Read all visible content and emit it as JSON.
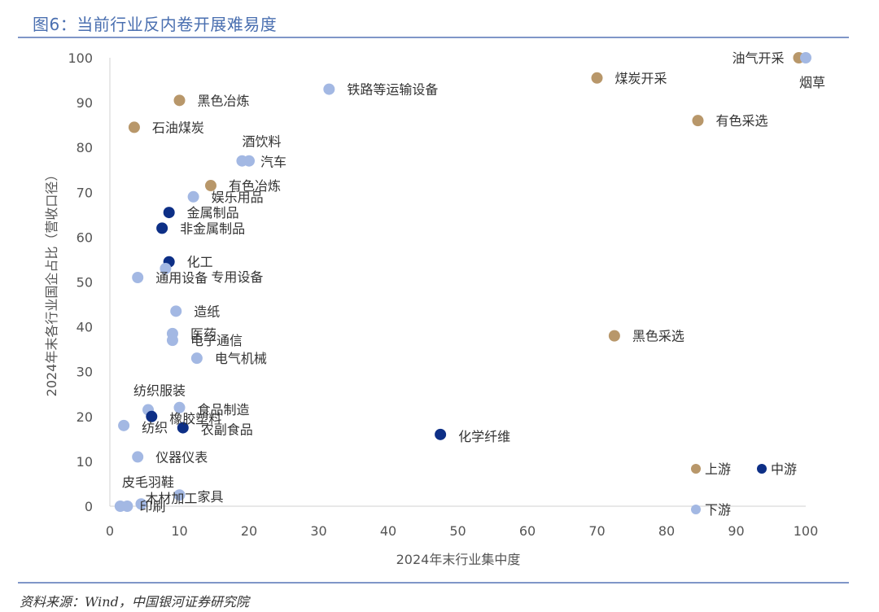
{
  "header": {
    "title": "图6：当前行业反内卷开展难易度"
  },
  "footer": {
    "source": "资料来源：Wind，中国银河证券研究院"
  },
  "colors": {
    "upstream": "#b8976a",
    "midstream": "#0d2f86",
    "downstream": "#a3b8e3",
    "highlight": "#e32219"
  },
  "chart_data": {
    "type": "scatter",
    "title": "当前行业反内卷开展难易度",
    "xlabel": "2024年末行业集中度",
    "ylabel": "2024年末各行业国企占比（营收口径）",
    "xlim": [
      0,
      100
    ],
    "ylim": [
      0,
      100
    ],
    "xticks": [
      "0",
      "10",
      "20",
      "30",
      "40",
      "50",
      "60",
      "70",
      "80",
      "90",
      "100"
    ],
    "yticks": [
      "0",
      "10",
      "20",
      "30",
      "40",
      "50",
      "60",
      "70",
      "80",
      "90",
      "100"
    ],
    "legend": {
      "placement": "bottom-right",
      "items": [
        {
          "name": "上游",
          "group": "upstream"
        },
        {
          "name": "中游",
          "group": "midstream"
        },
        {
          "name": "下游",
          "group": "downstream"
        }
      ]
    },
    "points": [
      {
        "label": "油气开采",
        "x": 99,
        "y": 100,
        "group": "upstream"
      },
      {
        "label": "烟草",
        "x": 100,
        "y": 100,
        "group": "downstream"
      },
      {
        "label": "煤炭开采",
        "x": 70,
        "y": 95.5,
        "group": "upstream"
      },
      {
        "label": "铁路等运输设备",
        "x": 31.5,
        "y": 93,
        "group": "downstream"
      },
      {
        "label": "黑色冶炼",
        "x": 10,
        "y": 90.5,
        "group": "upstream"
      },
      {
        "label": "有色采选",
        "x": 84.5,
        "y": 86,
        "group": "upstream"
      },
      {
        "label": "石油煤炭",
        "x": 3.5,
        "y": 84.5,
        "group": "upstream"
      },
      {
        "label": "酒饮料",
        "x": 19,
        "y": 77,
        "group": "downstream"
      },
      {
        "label": "汽车",
        "x": 20,
        "y": 77,
        "group": "downstream",
        "highlight": true
      },
      {
        "label": "有色冶炼",
        "x": 14.5,
        "y": 71.5,
        "group": "upstream"
      },
      {
        "label": "娱乐用品",
        "x": 12,
        "y": 69,
        "group": "downstream"
      },
      {
        "label": "金属制品",
        "x": 8.5,
        "y": 65.5,
        "group": "midstream"
      },
      {
        "label": "非金属制品",
        "x": 7.5,
        "y": 62,
        "group": "midstream"
      },
      {
        "label": "化工",
        "x": 8.5,
        "y": 54.5,
        "group": "midstream"
      },
      {
        "label": "专用设备",
        "x": 8,
        "y": 53,
        "group": "downstream"
      },
      {
        "label": "通用设备",
        "x": 4,
        "y": 51,
        "group": "downstream"
      },
      {
        "label": "造纸",
        "x": 9.5,
        "y": 43.5,
        "group": "downstream"
      },
      {
        "label": "医药",
        "x": 9,
        "y": 38.5,
        "group": "downstream"
      },
      {
        "label": "黑色采选",
        "x": 72.5,
        "y": 38,
        "group": "upstream"
      },
      {
        "label": "电子通信",
        "x": 9,
        "y": 37,
        "group": "downstream"
      },
      {
        "label": "电气机械",
        "x": 12.5,
        "y": 33,
        "group": "downstream"
      },
      {
        "label": "纺织服装",
        "x": 5.5,
        "y": 21.5,
        "group": "downstream"
      },
      {
        "label": "食品制造",
        "x": 10,
        "y": 22,
        "group": "downstream"
      },
      {
        "label": "橡胶塑料",
        "x": 6,
        "y": 20,
        "group": "midstream"
      },
      {
        "label": "纺织",
        "x": 2,
        "y": 18,
        "group": "downstream"
      },
      {
        "label": "农副食品",
        "x": 10.5,
        "y": 17.5,
        "group": "midstream"
      },
      {
        "label": "化学纤维",
        "x": 47.5,
        "y": 16,
        "group": "midstream",
        "highlight": true
      },
      {
        "label": "仪器仪表",
        "x": 4,
        "y": 11,
        "group": "downstream"
      },
      {
        "label": "皮毛羽鞋",
        "x": 1.5,
        "y": 0,
        "group": "downstream"
      },
      {
        "label": "木材加工",
        "x": 2.5,
        "y": 0,
        "group": "downstream"
      },
      {
        "label": "家具",
        "x": 10,
        "y": 2.5,
        "group": "downstream"
      },
      {
        "label": "印刷",
        "x": 4.5,
        "y": 0.5,
        "group": "downstream"
      }
    ]
  }
}
